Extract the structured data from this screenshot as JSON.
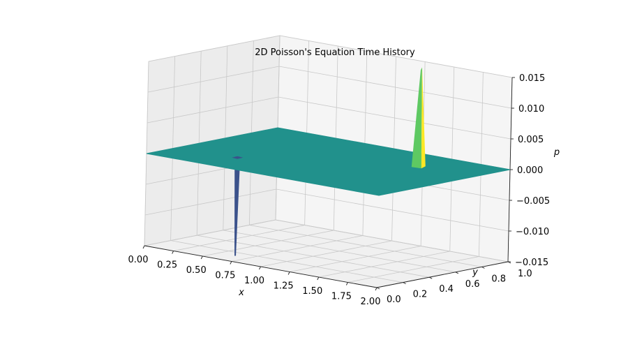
{
  "chart_data": {
    "type": "surface",
    "title": "2D Poisson's Equation Time History",
    "xlabel": "x",
    "ylabel": "y",
    "zlabel": "p",
    "xlim": [
      0,
      2
    ],
    "ylim": [
      0,
      1
    ],
    "zlim": [
      -0.015,
      0.015
    ],
    "x_ticks": [
      "0.00",
      "0.25",
      "0.50",
      "0.75",
      "1.00",
      "1.25",
      "1.50",
      "1.75",
      "2.00"
    ],
    "y_ticks": [
      "0.0",
      "0.2",
      "0.4",
      "0.6",
      "0.8",
      "1.0"
    ],
    "z_ticks": [
      "−0.015",
      "−0.010",
      "−0.005",
      "0.000",
      "0.005",
      "0.010",
      "0.015"
    ],
    "surface_base_value": 0.0,
    "features": [
      {
        "kind": "positive-peak",
        "x": 1.5,
        "y": 0.75,
        "value": 0.016
      },
      {
        "kind": "negative-peak",
        "x": 0.5,
        "y": 0.25,
        "value": -0.016
      }
    ],
    "colormap": "viridis",
    "grid": true,
    "colors": {
      "surface": "#21918c",
      "peak_high": "#fde725",
      "peak_mid": "#5ec962",
      "trough": "#3b528b",
      "pane": "#f2f2f2",
      "grid": "#c8c8c8"
    }
  }
}
